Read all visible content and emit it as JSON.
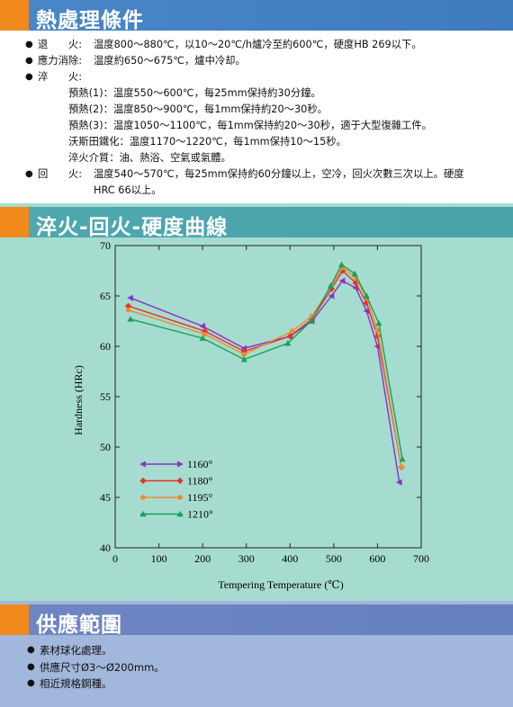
{
  "sections": {
    "heat_treatment": {
      "title": "熱處理條件",
      "items": {
        "annealing": {
          "bullet": "●",
          "label": "退　　火:",
          "text": "温度800～880℃，以10～20℃/h爐冷至約600℃，硬度HB  269以下。"
        },
        "stress_relief": {
          "bullet": "●",
          "label": "應力消除:",
          "text": "温度約650～675℃，爐中冷却。"
        },
        "quench": {
          "bullet": "●",
          "label": "淬　　火:"
        },
        "preheat1": "預熱(1)：温度550～600℃，每25mm保持約30分鐘。",
        "preheat2": "預熱(2)：温度850～900℃，每1mm保持約20～30秒。",
        "preheat3": "預熱(3)：温度1050～1100℃，每1mm保持約20～30秒，適于大型復雜工件。",
        "austenite": "沃斯田鐵化：温度1170～1220℃，每1mm保持10～15秒。",
        "media": "淬火介質：油、熱浴、空氣或氣體。",
        "tempering": {
          "bullet": "●",
          "label": "回　　火:",
          "text": "温度540～570℃，每25mm保持約60分鐘以上，空冷，回火次數三次以上。硬度",
          "text2": "HRC  66以上。"
        }
      }
    },
    "curve": {
      "title": "淬火-回火-硬度曲線"
    },
    "supply": {
      "title": "供應範圍",
      "items": [
        "素材球化處理。",
        "供應尺寸Ø3～Ø200mm。",
        "相近規格鋼種。"
      ],
      "bullet": "●"
    }
  },
  "chart_data": {
    "type": "line",
    "xlabel": "Tempering Temperature (℃)",
    "ylabel": "Hardness (HRc)",
    "xlim": [
      0,
      700
    ],
    "ylim": [
      40,
      70
    ],
    "x_ticks": [
      0,
      100,
      200,
      300,
      400,
      500,
      600,
      700
    ],
    "y_ticks": [
      40,
      45,
      50,
      55,
      60,
      65,
      70
    ],
    "legend_position": "bottom-left",
    "series": [
      {
        "name": "1160°",
        "color": "#8e2fc4",
        "marker": "triangle-left",
        "points": [
          [
            35,
            64.8
          ],
          [
            200,
            62.0
          ],
          [
            295,
            59.8
          ],
          [
            400,
            61.0
          ],
          [
            450,
            62.5
          ],
          [
            495,
            65.0
          ],
          [
            520,
            66.5
          ],
          [
            550,
            65.8
          ],
          [
            575,
            63.5
          ],
          [
            600,
            60.0
          ],
          [
            650,
            46.5
          ]
        ]
      },
      {
        "name": "1180°",
        "color": "#e6322d",
        "marker": "diamond",
        "points": [
          [
            30,
            64.0
          ],
          [
            205,
            61.5
          ],
          [
            295,
            59.5
          ],
          [
            400,
            61.0
          ],
          [
            450,
            62.7
          ],
          [
            495,
            65.7
          ],
          [
            520,
            67.5
          ],
          [
            550,
            66.3
          ],
          [
            575,
            64.3
          ],
          [
            600,
            61.0
          ],
          [
            655,
            48.0
          ]
        ]
      },
      {
        "name": "1195°",
        "color": "#f08a2c",
        "marker": "circle",
        "points": [
          [
            30,
            63.6
          ],
          [
            205,
            61.2
          ],
          [
            295,
            59.2
          ],
          [
            405,
            61.5
          ],
          [
            450,
            63.0
          ],
          [
            495,
            66.0
          ],
          [
            520,
            67.8
          ],
          [
            550,
            66.8
          ],
          [
            575,
            64.8
          ],
          [
            600,
            61.6
          ],
          [
            655,
            48.0
          ]
        ]
      },
      {
        "name": "1210°",
        "color": "#1aa05a",
        "marker": "triangle-up",
        "points": [
          [
            35,
            62.7
          ],
          [
            200,
            60.8
          ],
          [
            295,
            58.7
          ],
          [
            395,
            60.3
          ],
          [
            448,
            62.5
          ],
          [
            493,
            66.0
          ],
          [
            518,
            68.1
          ],
          [
            548,
            67.2
          ],
          [
            575,
            65.0
          ],
          [
            603,
            62.3
          ],
          [
            657,
            48.8
          ]
        ]
      }
    ]
  }
}
